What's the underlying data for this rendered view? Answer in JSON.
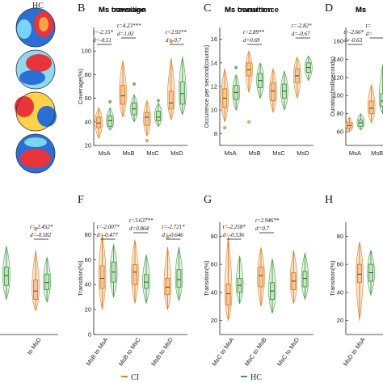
{
  "panel_letters": {
    "B": "B",
    "C": "C",
    "D": "D",
    "F": "F",
    "G": "G",
    "H": "H"
  },
  "hc_label": "HC",
  "legend": {
    "ci": "CI",
    "hc": "HC"
  },
  "colors": {
    "ci": "#d9822b",
    "hc": "#4e9a4e",
    "ci_fill": "#f5c79a",
    "hc_fill": "#c5e3c1"
  },
  "chart_data": [
    {
      "id": "B",
      "type": "box",
      "title": "Ms coverage",
      "ylabel": "Coverage(%)",
      "categories": [
        "MsA",
        "MsB",
        "MsC",
        "MsD"
      ],
      "ylim": [
        20,
        120
      ],
      "yticks": [
        20,
        40,
        60,
        80,
        100
      ],
      "series": [
        {
          "name": "CI",
          "boxes": [
            [
              26,
              35,
              39,
              44,
              52
            ],
            [
              44,
              55,
              62,
              71,
              92
            ],
            [
              28,
              37,
              44,
              48,
              58
            ],
            [
              42,
              51,
              56,
              66,
              94
            ]
          ],
          "outliers": [
            [],
            [],
            [
              24
            ],
            [
              108
            ]
          ]
        },
        {
          "name": "HC",
          "boxes": [
            [
              33,
              36,
              41,
              45,
              52
            ],
            [
              40,
              46,
              51,
              56,
              63
            ],
            [
              36,
              41,
              44,
              49,
              56
            ],
            [
              46,
              55,
              64,
              74,
              95
            ]
          ],
          "outliers": [
            [
              57
            ],
            [
              72
            ],
            [
              58
            ],
            []
          ]
        }
      ],
      "annotations": [
        {
          "cat": 0,
          "lines": [
            "t=-2.15*",
            "d=-0.51"
          ]
        },
        {
          "cat": 1,
          "lines": [
            "t=4.23***",
            "d=1.02"
          ]
        },
        {
          "cat": 3,
          "lines": [
            "t=2.93**",
            "d=-0.7"
          ]
        }
      ]
    },
    {
      "id": "C",
      "type": "box",
      "title": "Ms occurrence",
      "ylabel": "Occurence per second(counts)",
      "categories": [
        "MsA",
        "MsB",
        "MsC",
        "MsD"
      ],
      "ylim": [
        7,
        17
      ],
      "yticks": [
        8,
        10,
        12,
        14,
        16
      ],
      "series": [
        {
          "name": "CI",
          "boxes": [
            [
              9,
              10.2,
              11,
              11.8,
              13.5
            ],
            [
              11.5,
              12.9,
              13.4,
              14,
              15
            ],
            [
              9.8,
              10.8,
              11.6,
              12.3,
              13.5
            ],
            [
              11,
              12.3,
              12.9,
              13.5,
              14.5
            ]
          ],
          "outliers": [
            [
              8.5
            ],
            [
              9
            ],
            [],
            []
          ]
        },
        {
          "name": "HC",
          "boxes": [
            [
              10,
              10.9,
              11.5,
              12.1,
              13
            ],
            [
              11,
              11.9,
              12.5,
              13.1,
              14
            ],
            [
              10,
              11,
              11.6,
              12.2,
              13.3
            ],
            [
              12.5,
              13.2,
              13.6,
              14,
              14.6
            ]
          ],
          "outliers": [
            [
              13.6
            ],
            [],
            [],
            []
          ]
        }
      ],
      "annotations": [
        {
          "cat": 1,
          "lines": [
            "t=2.89**",
            "d=0.69"
          ]
        },
        {
          "cat": 3,
          "lines": [
            "t=-2.82*",
            "d=-0.67"
          ]
        }
      ]
    },
    {
      "id": "D",
      "type": "box",
      "title": "Ms",
      "ylabel": "Duration(milliseconds)",
      "categories": [
        "MsA",
        "MsB"
      ],
      "ylim": [
        45,
        175
      ],
      "yticks": [
        60,
        80,
        100,
        120,
        140,
        160
      ],
      "series": [
        {
          "name": "CI",
          "boxes": [
            [
              60,
              64,
              67,
              70,
              76
            ],
            [
              70,
              80,
              86,
              94,
              112
            ]
          ],
          "outliers": [
            [],
            []
          ]
        },
        {
          "name": "HC",
          "boxes": [
            [
              62,
              66,
              70,
              73,
              80
            ],
            [
              80,
              88,
              94,
              102,
              134
            ]
          ],
          "outliers": [
            [],
            []
          ]
        }
      ],
      "annotations": [
        {
          "cat": 0,
          "lines": [
            "t=-2.66*",
            "d=-0.63"
          ]
        },
        {
          "cat": 1,
          "lines": [
            "t=",
            "d="
          ]
        }
      ]
    },
    {
      "id": "E",
      "type": "box",
      "title": "",
      "ylabel": "",
      "categories": [
        "to MsC",
        "to MsD"
      ],
      "ylim": [
        5,
        85
      ],
      "yticks": [],
      "series": [
        {
          "name": "CI",
          "boxes": [
            [
              25,
              37,
              44,
              52,
              72
            ],
            [
              22,
              30,
              36,
              44,
              65
            ]
          ],
          "outliers": [
            [],
            [
              80
            ]
          ]
        },
        {
          "name": "HC",
          "boxes": [
            [
              30,
              40,
              47,
              53,
              68
            ],
            [
              28,
              37,
              42,
              48,
              60
            ]
          ],
          "outliers": [
            [],
            []
          ]
        }
      ],
      "annotations": [
        {
          "cat": 1,
          "lines": [
            "t=-2.452*",
            "d=-0.582"
          ]
        }
      ]
    },
    {
      "id": "F",
      "type": "box",
      "title": "Ms transition",
      "ylabel": "Transition(%)",
      "categories": [
        "MsB to MsA",
        "MsB to MsC",
        "MsB to MsD"
      ],
      "ylim": [
        0,
        90
      ],
      "yticks": [
        0,
        20,
        40,
        60,
        80
      ],
      "series": [
        {
          "name": "CI",
          "boxes": [
            [
              20,
              37,
              45,
              55,
              80
            ],
            [
              25,
              40,
              50,
              56,
              76
            ],
            [
              20,
              32,
              38,
              45,
              70
            ]
          ],
          "outliers": [
            [],
            [],
            [
              78
            ]
          ]
        },
        {
          "name": "HC",
          "boxes": [
            [
              30,
              42,
              50,
              58,
              72
            ],
            [
              25,
              37,
              42,
              48,
              64
            ],
            [
              27,
              38,
              44,
              52,
              70
            ]
          ],
          "outliers": [
            [],
            [],
            []
          ]
        }
      ],
      "annotations": [
        {
          "cat": 0,
          "lines": [
            "t=-2.007*",
            "d=-0.477"
          ]
        },
        {
          "cat": 1,
          "lines": [
            "t=3.637**",
            "d=0.864"
          ]
        },
        {
          "cat": 2,
          "lines": [
            "t=-2.721*",
            "d=-0.646"
          ]
        }
      ]
    },
    {
      "id": "G",
      "type": "box",
      "title": "Ms transition",
      "ylabel": "Transition(%)",
      "categories": [
        "MsC to MsA",
        "MsC to MsB",
        "MsC to MsD"
      ],
      "ylim": [
        10,
        90
      ],
      "yticks": [
        20,
        40,
        60,
        80
      ],
      "series": [
        {
          "name": "CI",
          "boxes": [
            [
              20,
              31,
              39,
              46,
              80
            ],
            [
              30,
              44,
              52,
              58,
              72
            ],
            [
              32,
              42,
              48,
              54,
              70
            ]
          ],
          "outliers": [
            [],
            [],
            []
          ]
        },
        {
          "name": "HC",
          "boxes": [
            [
              32,
              40,
              45,
              50,
              66
            ],
            [
              25,
              35,
              41,
              47,
              64
            ],
            [
              35,
              44,
              50,
              55,
              68
            ]
          ],
          "outliers": [
            [],
            [],
            []
          ]
        }
      ],
      "annotations": [
        {
          "cat": 0,
          "lines": [
            "t=-2.258*",
            "d=-0.536"
          ]
        },
        {
          "cat": 1,
          "lines": [
            "t=2.946**",
            "d=0.7"
          ]
        }
      ]
    },
    {
      "id": "H",
      "type": "box",
      "title": "Ms",
      "ylabel": "Transition(%)",
      "categories": [
        "MsD to MsA"
      ],
      "ylim": [
        10,
        90
      ],
      "yticks": [
        20,
        40,
        60,
        80
      ],
      "series": [
        {
          "name": "CI",
          "boxes": [
            [
              20,
              47,
              53,
              60,
              76
            ]
          ],
          "outliers": [
            []
          ]
        },
        {
          "name": "HC",
          "boxes": [
            [
              38,
              48,
              54,
              60,
              70
            ]
          ],
          "outliers": [
            []
          ]
        }
      ],
      "annotations": []
    }
  ]
}
